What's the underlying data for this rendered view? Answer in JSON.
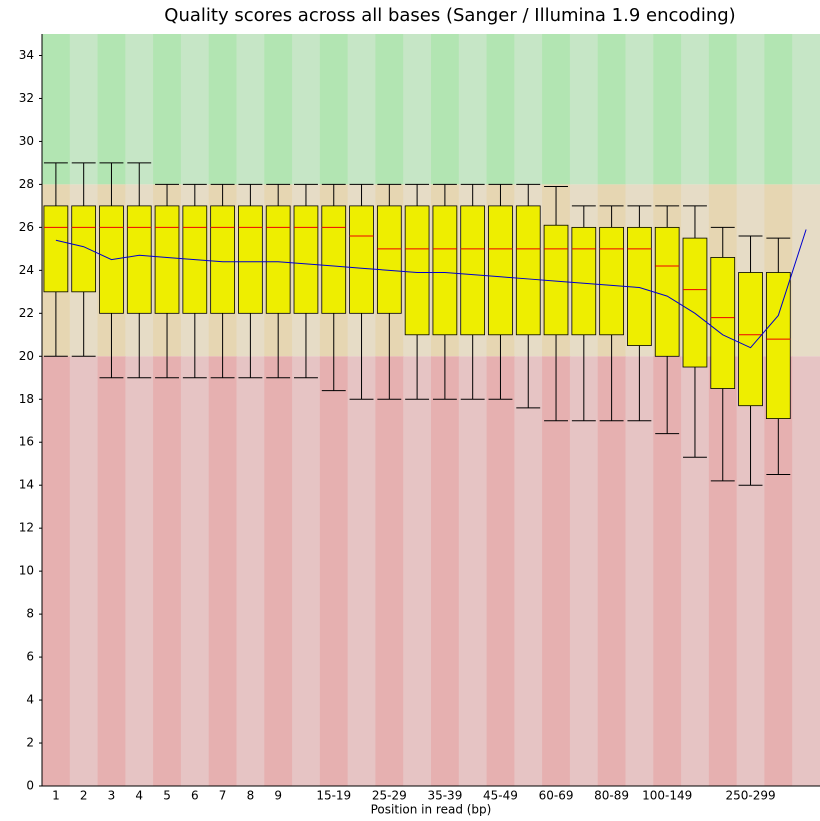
{
  "chart_data": {
    "type": "boxplot",
    "title": "Quality scores across all bases (Sanger / Illumina 1.9 encoding)",
    "x_label": "Position in read (bp)",
    "categories": [
      "1",
      "2",
      "3",
      "4",
      "5",
      "6",
      "7",
      "8",
      "9",
      null,
      "15-19",
      null,
      "25-29",
      null,
      "35-39",
      null,
      "45-49",
      null,
      "60-69",
      null,
      "80-89",
      null,
      "100-149",
      null,
      null,
      "250-299",
      null,
      null
    ],
    "whisker_high": [
      29,
      29,
      29,
      29,
      28,
      28,
      28,
      28,
      28,
      28,
      28,
      28,
      28,
      28,
      28,
      28,
      28,
      28,
      27.9,
      27,
      27,
      27,
      27,
      27,
      26,
      25.6,
      25.5,
      null
    ],
    "q3": [
      27,
      27,
      27,
      27,
      27,
      27,
      27,
      27,
      27,
      27,
      27,
      27,
      27,
      27,
      27,
      27,
      27,
      27,
      26.1,
      26,
      26,
      26,
      26,
      25.5,
      24.6,
      23.9,
      23.9,
      null
    ],
    "median": [
      26,
      26,
      26,
      26,
      26,
      26,
      26,
      26,
      26,
      26,
      26,
      25.6,
      25,
      25,
      25,
      25,
      25,
      25,
      25,
      25,
      25,
      25,
      24.2,
      23.1,
      21.8,
      21,
      20.8,
      null
    ],
    "q1": [
      23,
      23,
      22,
      22,
      22,
      22,
      22,
      22,
      22,
      22,
      22,
      22,
      22,
      21,
      21,
      21,
      21,
      21,
      21,
      21,
      21,
      20.5,
      20,
      19.5,
      18.5,
      17.7,
      17.1,
      null
    ],
    "whisker_low": [
      20,
      20,
      19,
      19,
      19,
      19,
      19,
      19,
      19,
      19,
      18.4,
      18,
      18,
      18,
      18,
      18,
      18,
      17.6,
      17,
      17,
      17,
      17,
      16.4,
      15.3,
      14.2,
      14,
      14.5,
      null
    ],
    "mean": [
      25.4,
      25.1,
      24.5,
      24.7,
      24.6,
      24.5,
      24.4,
      24.4,
      24.4,
      24.3,
      24.2,
      24.1,
      24,
      23.9,
      23.9,
      23.8,
      23.7,
      23.6,
      23.5,
      23.4,
      23.3,
      23.2,
      22.8,
      22,
      21,
      20.4,
      21.9,
      25.9
    ],
    "box_color": "#eeee00",
    "median_color": "#ee0000",
    "mean_color": "#0000cc",
    "zones": [
      {
        "from": 28,
        "to": 35,
        "color": "#b2e5b2",
        "alt_color": "#c6e6c6"
      },
      {
        "from": 20,
        "to": 28,
        "color": "#e6d6b2",
        "alt_color": "#e6dcc6"
      },
      {
        "from": 0,
        "to": 20,
        "color": "#e6b0b0",
        "alt_color": "#e6c4c4"
      }
    ],
    "ylim": [
      0,
      35
    ],
    "yticks": [
      0,
      2,
      4,
      6,
      8,
      10,
      12,
      14,
      16,
      18,
      20,
      22,
      24,
      26,
      28,
      30,
      32,
      34
    ]
  }
}
